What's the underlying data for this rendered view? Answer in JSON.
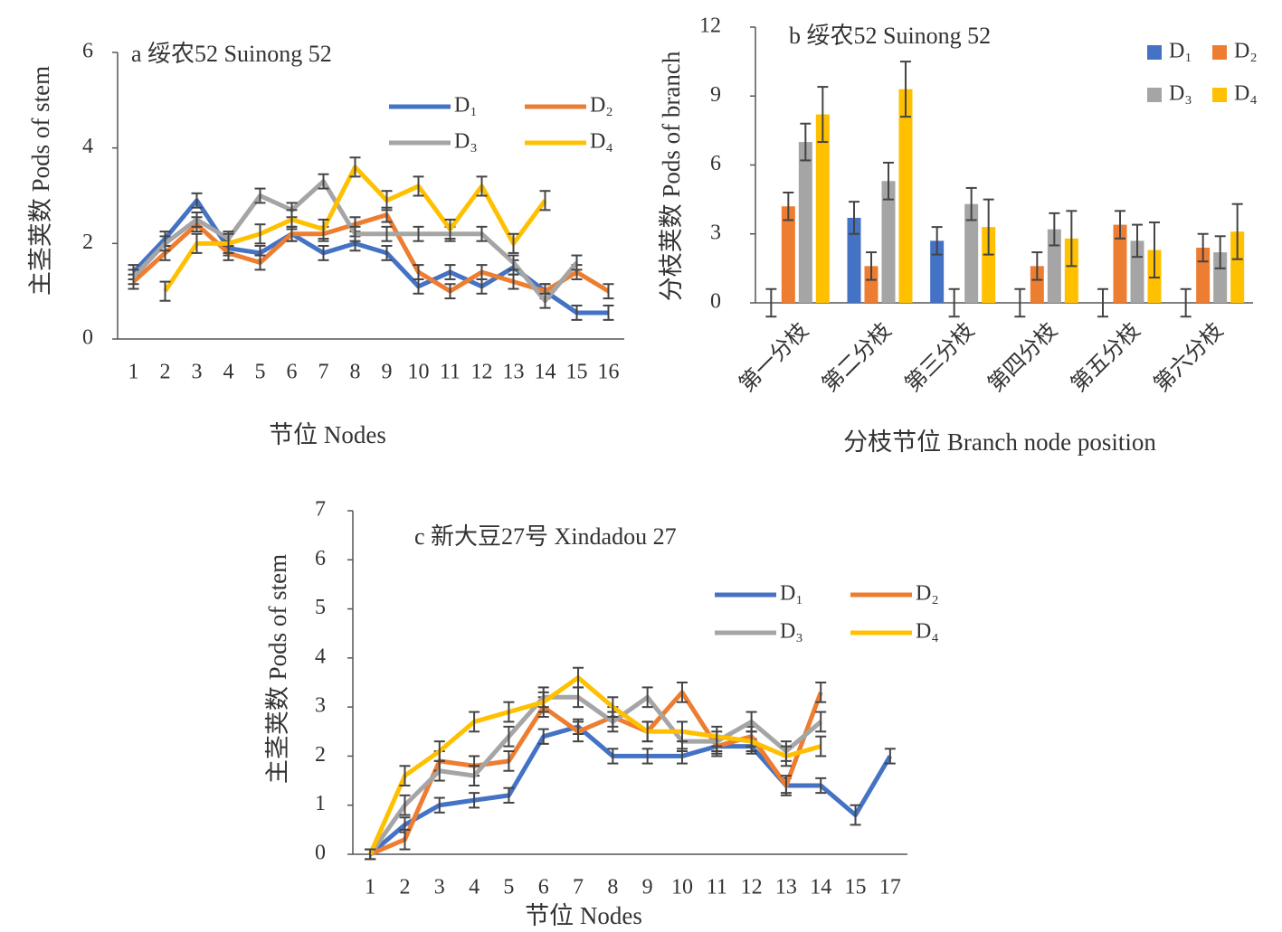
{
  "chart_data": [
    {
      "type": "line",
      "title": "a 绥农52  Suinong 52",
      "x_label": "节位 Nodes",
      "y_label": "主茎荚数 Pods of stem",
      "categories": [
        "1",
        "2",
        "3",
        "4",
        "5",
        "6",
        "7",
        "8",
        "9",
        "10",
        "11",
        "12",
        "13",
        "14",
        "15",
        "16"
      ],
      "ylim": [
        0,
        6
      ],
      "yticks": [
        0,
        2,
        4,
        6
      ],
      "series": [
        {
          "name": "D₁",
          "color": "#4472c4",
          "values": [
            1.4,
            2.1,
            2.9,
            1.9,
            1.8,
            2.2,
            1.8,
            2.0,
            1.8,
            1.1,
            1.4,
            1.1,
            1.5,
            1.0,
            0.55,
            0.55
          ],
          "errors": [
            0.15,
            0.15,
            0.15,
            0.15,
            0.15,
            0.15,
            0.15,
            0.15,
            0.15,
            0.15,
            0.15,
            0.15,
            0.15,
            0.15,
            0.15,
            0.15
          ]
        },
        {
          "name": "D₂",
          "color": "#ed7d31",
          "values": [
            1.2,
            1.8,
            2.4,
            1.8,
            1.6,
            2.2,
            2.2,
            2.4,
            2.6,
            1.4,
            1.0,
            1.4,
            1.2,
            1.0,
            1.4,
            1.0
          ],
          "errors": [
            0.15,
            0.15,
            0.15,
            0.15,
            0.15,
            0.15,
            0.15,
            0.15,
            0.15,
            0.15,
            0.15,
            0.15,
            0.15,
            0.15,
            0.15,
            0.15
          ]
        },
        {
          "name": "D₃",
          "color": "#a5a5a5",
          "values": [
            1.3,
            2.0,
            2.5,
            2.1,
            3.0,
            2.7,
            3.3,
            2.2,
            2.2,
            2.2,
            2.2,
            2.2,
            1.6,
            0.8,
            1.6,
            null
          ],
          "errors": [
            0.15,
            0.15,
            0.15,
            0.15,
            0.15,
            0.15,
            0.15,
            0.15,
            0.15,
            0.15,
            0.15,
            0.15,
            0.15,
            0.15,
            0.15,
            null
          ]
        },
        {
          "name": "D₄",
          "color": "#ffc000",
          "values": [
            null,
            1.0,
            2.0,
            2.0,
            2.2,
            2.5,
            2.3,
            3.6,
            2.9,
            3.2,
            2.3,
            3.2,
            2.0,
            2.9,
            null,
            null
          ],
          "errors": [
            null,
            0.2,
            0.2,
            0.2,
            0.2,
            0.2,
            0.2,
            0.2,
            0.2,
            0.2,
            0.2,
            0.2,
            0.2,
            0.2,
            null,
            null
          ]
        }
      ]
    },
    {
      "type": "bar",
      "title": "b 绥农52  Suinong 52",
      "x_label": "分枝节位 Branch node position",
      "y_label": "分枝荚数 Pods of branch",
      "categories": [
        "第一分枝",
        "第二分枝",
        "第三分枝",
        "第四分枝",
        "第五分枝",
        "第六分枝"
      ],
      "ylim": [
        0,
        12
      ],
      "yticks": [
        0,
        3,
        6,
        9,
        12
      ],
      "series": [
        {
          "name": "D₁",
          "color": "#4472c4",
          "values": [
            0,
            3.7,
            2.7,
            0,
            0,
            0
          ],
          "errors": [
            0.6,
            0.7,
            0.6,
            0.6,
            0.6,
            0.6
          ]
        },
        {
          "name": "D₂",
          "color": "#ed7d31",
          "values": [
            4.2,
            1.6,
            0,
            1.6,
            3.4,
            2.4
          ],
          "errors": [
            0.6,
            0.6,
            0.6,
            0.6,
            0.6,
            0.6
          ]
        },
        {
          "name": "D₃",
          "color": "#a5a5a5",
          "values": [
            7.0,
            5.3,
            4.3,
            3.2,
            2.7,
            2.2
          ],
          "errors": [
            0.8,
            0.8,
            0.7,
            0.7,
            0.7,
            0.7
          ]
        },
        {
          "name": "D₄",
          "color": "#ffc000",
          "values": [
            8.2,
            9.3,
            3.3,
            2.8,
            2.3,
            3.1
          ],
          "errors": [
            1.2,
            1.2,
            1.2,
            1.2,
            1.2,
            1.2
          ]
        }
      ]
    },
    {
      "type": "line",
      "title": "c 新大豆27号  Xindadou 27",
      "x_label": "节位 Nodes",
      "y_label": "主茎荚数 Pods of stem",
      "categories": [
        "1",
        "2",
        "3",
        "4",
        "5",
        "6",
        "7",
        "8",
        "9",
        "10",
        "11",
        "12",
        "13",
        "14",
        "15",
        "17"
      ],
      "ylim": [
        0,
        7
      ],
      "yticks": [
        0,
        1,
        2,
        3,
        4,
        5,
        6,
        7
      ],
      "series": [
        {
          "name": "D₁",
          "color": "#4472c4",
          "values": [
            0,
            0.6,
            1.0,
            1.1,
            1.2,
            2.4,
            2.6,
            2.0,
            2.0,
            2.0,
            2.2,
            2.2,
            1.4,
            1.4,
            0.8,
            2.0
          ],
          "errors": [
            0.1,
            0.15,
            0.15,
            0.15,
            0.15,
            0.15,
            0.15,
            0.15,
            0.15,
            0.15,
            0.15,
            0.15,
            0.15,
            0.15,
            0.2,
            0.15
          ]
        },
        {
          "name": "D₂",
          "color": "#ed7d31",
          "values": [
            0,
            0.3,
            1.9,
            1.8,
            1.9,
            3.0,
            2.5,
            2.8,
            2.5,
            3.3,
            2.2,
            2.4,
            1.4,
            3.3,
            null,
            null
          ],
          "errors": [
            0.1,
            0.2,
            0.2,
            0.2,
            0.2,
            0.2,
            0.2,
            0.2,
            0.2,
            0.2,
            0.2,
            0.2,
            0.2,
            0.2,
            null,
            null
          ]
        },
        {
          "name": "D₃",
          "color": "#a5a5a5",
          "values": [
            0,
            1.0,
            1.7,
            1.6,
            2.4,
            3.2,
            3.2,
            2.7,
            3.2,
            2.3,
            2.3,
            2.7,
            2.1,
            2.7,
            null,
            null
          ],
          "errors": [
            0.1,
            0.2,
            0.2,
            0.2,
            0.2,
            0.2,
            0.2,
            0.2,
            0.2,
            0.2,
            0.2,
            0.2,
            0.2,
            0.2,
            null,
            null
          ]
        },
        {
          "name": "D₄",
          "color": "#ffc000",
          "values": [
            0,
            1.6,
            2.1,
            2.7,
            2.9,
            3.1,
            3.6,
            3.0,
            2.5,
            2.5,
            2.4,
            2.3,
            2.0,
            2.2,
            null,
            null
          ],
          "errors": [
            0.1,
            0.2,
            0.2,
            0.2,
            0.2,
            0.2,
            0.2,
            0.2,
            0.2,
            0.2,
            0.2,
            0.2,
            0.2,
            0.2,
            null,
            null
          ]
        }
      ]
    }
  ]
}
